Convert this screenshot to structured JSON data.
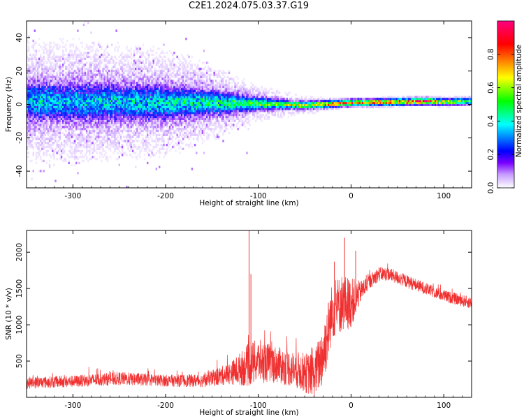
{
  "title": "C2E1.2024.075.03.37.G19",
  "chart_data": [
    {
      "type": "heatmap",
      "xlabel": "Height of straight line (km)",
      "ylabel": "Frequency (Hz)",
      "xlim": [
        -350,
        130
      ],
      "ylim": [
        -50,
        50
      ],
      "x_ticks": [
        -300,
        -200,
        -100,
        0,
        100
      ],
      "y_ticks": [
        -40,
        -20,
        0,
        20,
        40
      ],
      "colorbar": {
        "label": "Normalized spectral amplitude",
        "range": [
          0,
          1
        ],
        "ticks": [
          0.0,
          0.2,
          0.4,
          0.6,
          0.8
        ],
        "colors": [
          "#ffffff",
          "#7a00ff",
          "#0000ff",
          "#00ffff",
          "#00ff00",
          "#ffff00",
          "#ff8000",
          "#ff0000",
          "#ff00aa"
        ]
      },
      "ridge": {
        "x": [
          -350,
          -300,
          -200,
          -150,
          -100,
          -50,
          0,
          50,
          80,
          100,
          130
        ],
        "center_hz": [
          1,
          1,
          0.5,
          0.5,
          0,
          -1,
          0.5,
          1,
          1.5,
          1,
          1.5
        ],
        "peak_amplitude": [
          0.3,
          0.3,
          0.35,
          0.4,
          0.5,
          0.7,
          0.75,
          0.8,
          0.9,
          0.6,
          0.55
        ],
        "spread_hz": [
          40,
          40,
          35,
          25,
          12,
          6,
          3,
          3,
          3,
          3,
          3
        ]
      }
    },
    {
      "type": "line",
      "xlabel": "Height of straight line (km)",
      "ylabel": "SNR (10 * v/v)",
      "xlim": [
        -350,
        130
      ],
      "ylim": [
        0,
        2300
      ],
      "x_ticks": [
        -300,
        -200,
        -100,
        0,
        100
      ],
      "y_ticks": [
        500,
        1000,
        1500,
        2000
      ],
      "color": "#f03030",
      "series": [
        {
          "x": [
            -350,
            -300,
            -250,
            -200,
            -160,
            -130,
            -110,
            -100,
            -80,
            -60,
            -40,
            -30,
            -20,
            -10,
            0,
            10,
            20,
            30,
            40,
            60,
            80,
            100,
            130
          ],
          "values": [
            200,
            220,
            260,
            230,
            230,
            330,
            450,
            500,
            450,
            380,
            300,
            600,
            1200,
            1300,
            1300,
            1450,
            1600,
            1700,
            1700,
            1600,
            1500,
            1400,
            1300
          ],
          "noise": [
            80,
            80,
            90,
            80,
            90,
            150,
            300,
            300,
            250,
            250,
            300,
            450,
            400,
            400,
            350,
            150,
            100,
            100,
            90,
            90,
            80,
            80,
            80
          ]
        }
      ],
      "spikes": [
        {
          "x": -110,
          "value": 2300
        },
        {
          "x": -108,
          "value": 1700
        },
        {
          "x": -7,
          "value": 2200
        },
        {
          "x": -18,
          "value": 1870
        },
        {
          "x": 5,
          "value": 2020
        }
      ]
    }
  ]
}
